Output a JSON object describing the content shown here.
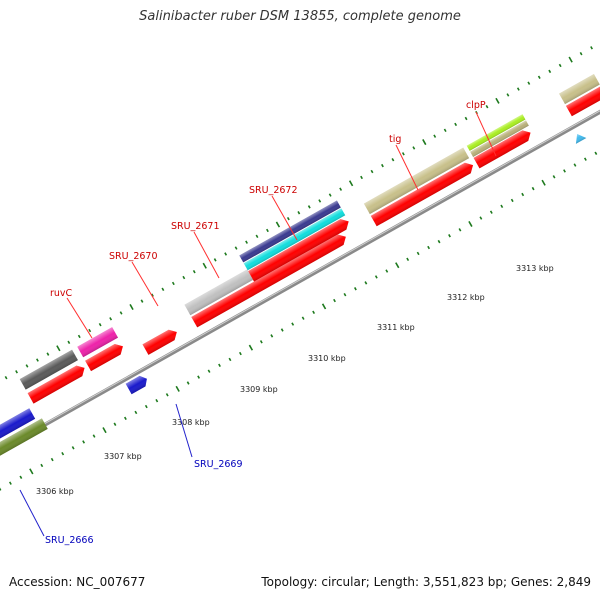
{
  "title": "Salinibacter ruber DSM 13855, complete genome",
  "accession_text": "Accession: NC_007677",
  "summary_text": "Topology: circular; Length: 3,551,823 bp; Genes: 2,849",
  "colors": {
    "backbone": "#8a8a8a",
    "minor_tick": "#1e7a1e",
    "cds": "#ff0000",
    "label_top": "#cc0000",
    "label_bottom": "#0000bb"
  },
  "scale_ticks": [
    "3306 kbp",
    "3307 kbp",
    "3308 kbp",
    "3309 kbp",
    "3310 kbp",
    "3311 kbp",
    "3312 kbp",
    "3313 kbp"
  ],
  "gene_labels": [
    "ruvC",
    "SRU_2670",
    "SRU_2671",
    "SRU_2672",
    "tig",
    "clpP",
    "SRU_2669",
    "SRU_2666"
  ]
}
